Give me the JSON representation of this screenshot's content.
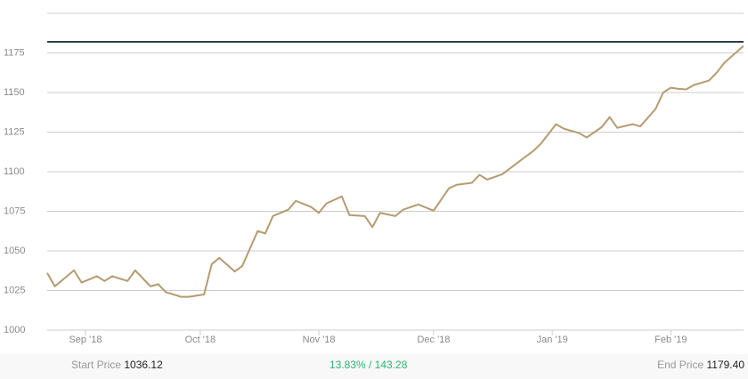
{
  "chart_data": {
    "type": "line",
    "x": [
      -10,
      -8,
      -3,
      -1,
      3,
      5,
      7,
      11,
      13,
      17,
      19,
      21,
      25,
      27,
      31,
      33,
      35,
      39,
      41,
      45,
      47,
      49,
      53,
      55,
      59,
      61,
      63,
      67,
      69,
      73,
      75,
      77,
      81,
      83,
      87,
      91,
      95,
      97,
      101,
      103,
      105,
      109,
      113,
      117,
      119,
      123,
      125,
      129,
      131,
      135,
      137,
      139,
      143,
      145,
      149,
      151,
      153,
      155,
      157,
      159,
      163,
      165,
      167,
      172
    ],
    "series": [
      {
        "color": "#b59b70",
        "values": [
          1036.1,
          1027.6,
          1037.7,
          1030,
          1034,
          1031,
          1034,
          1031,
          1037.7,
          1027.6,
          1029,
          1024,
          1021,
          1021,
          1022.5,
          1041.6,
          1045.6,
          1037,
          1040.5,
          1062.5,
          1061,
          1072,
          1076,
          1081.6,
          1077.7,
          1074,
          1080,
          1084.4,
          1072.6,
          1072,
          1065,
          1074,
          1072,
          1076,
          1079.3,
          1075.4,
          1089.5,
          1091.7,
          1093,
          1098,
          1095,
          1098.5,
          1105.8,
          1113,
          1117.6,
          1130,
          1127.2,
          1124.4,
          1121.6,
          1128.3,
          1134.5,
          1127.7,
          1130,
          1128.6,
          1139.6,
          1150,
          1153,
          1152.3,
          1152,
          1154.7,
          1157.6,
          1162.6,
          1168.8,
          1179.4
        ]
      }
    ],
    "xlim": [
      -10,
      172
    ],
    "xticks": [
      {
        "value": 0,
        "label": "Sep '18"
      },
      {
        "value": 30,
        "label": "Oct '18"
      },
      {
        "value": 61,
        "label": "Nov '18"
      },
      {
        "value": 91,
        "label": "Dec '18"
      },
      {
        "value": 122,
        "label": "Jan '19"
      },
      {
        "value": 153,
        "label": "Feb '19"
      }
    ],
    "ylim": [
      1000,
      1200
    ],
    "yticks": [
      1000,
      1025,
      1050,
      1075,
      1100,
      1125,
      1150,
      1175
    ],
    "reference_line": {
      "value": 1182,
      "color": "#2c3e50"
    },
    "grid": true
  },
  "footer": {
    "start_label": "Start Price",
    "start_value": "1036.12",
    "change": "13.83% / 143.28",
    "end_label": "End Price",
    "end_value": "1179.40"
  }
}
